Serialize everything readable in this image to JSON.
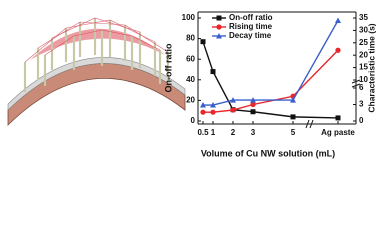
{
  "chart_data": {
    "type": "line",
    "x_label": "Volume of Cu NW solution (mL)",
    "y_label": "On-off ratio",
    "y2_label": "Characteristic time (s)",
    "categories": [
      "0.5",
      "1",
      "2",
      "3",
      "5",
      "Ag paste"
    ],
    "series": [
      {
        "name": "On-off ratio",
        "color": "#111111",
        "marker": "square",
        "values": [
          77,
          48,
          11,
          9,
          4,
          3
        ]
      },
      {
        "name": "Rising time",
        "color": "#e8262b",
        "marker": "circle",
        "axis": "y2",
        "values": [
          1.6,
          1.6,
          2,
          3,
          4.5,
          22
        ]
      },
      {
        "name": "Decay time",
        "color": "#3a5fcd",
        "marker": "triangle",
        "axis": "y2",
        "values": [
          2.9,
          2.9,
          3.8,
          3.8,
          3.8,
          34
        ]
      }
    ],
    "ylim": [
      0,
      100
    ],
    "yticks": [
      0,
      20,
      40,
      60,
      80,
      100
    ],
    "y2lim": [
      0,
      35
    ],
    "y2ticks": [
      0,
      3,
      6,
      10,
      15,
      20,
      25,
      30,
      35
    ],
    "legend": "upper-left"
  }
}
